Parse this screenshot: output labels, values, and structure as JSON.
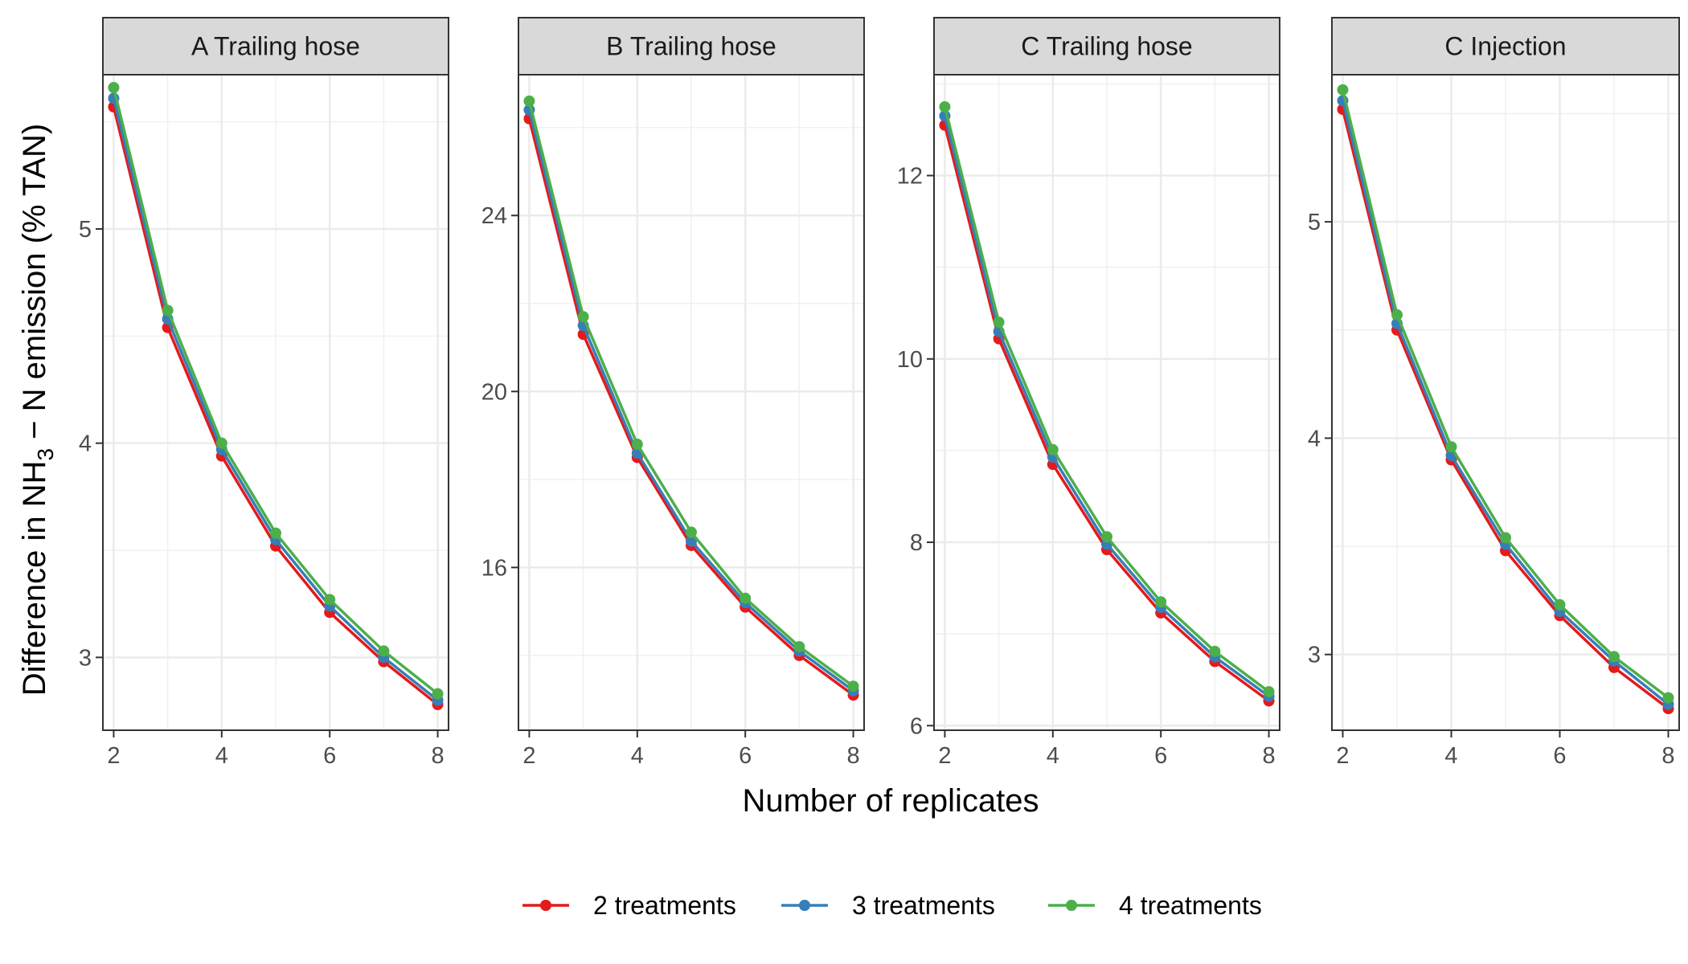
{
  "chart_data": {
    "type": "line",
    "xlabel": "Number of replicates",
    "ylabel": {
      "prefix": "Difference in  NH",
      "subscript": "3",
      "suffix": " − N  emission (% TAN)"
    },
    "x": [
      2,
      3,
      4,
      5,
      6,
      7,
      8
    ],
    "x_ticks": [
      2,
      4,
      6,
      8
    ],
    "grid": true,
    "legend_position": "bottom",
    "series_colors": {
      "2 treatments": "#E41A1C",
      "3 treatments": "#377EB8",
      "4 treatments": "#4DAF4A"
    },
    "legend": [
      "2 treatments",
      "3 treatments",
      "4 treatments"
    ],
    "panels": [
      {
        "title": "A Trailing hose",
        "ylim": [
          2.66,
          5.72
        ],
        "y_ticks": [
          3,
          4,
          5
        ],
        "series": [
          {
            "name": "2 treatments",
            "values": [
              5.57,
              4.54,
              3.94,
              3.52,
              3.21,
              2.98,
              2.78
            ]
          },
          {
            "name": "3 treatments",
            "values": [
              5.61,
              4.58,
              3.97,
              3.55,
              3.24,
              3.0,
              2.8
            ]
          },
          {
            "name": "4 treatments",
            "values": [
              5.66,
              4.62,
              4.0,
              3.58,
              3.27,
              3.03,
              2.83
            ]
          }
        ]
      },
      {
        "title": "B Trailing hose",
        "ylim": [
          12.3,
          27.2
        ],
        "y_ticks": [
          16,
          20,
          24
        ],
        "series": [
          {
            "name": "2 treatments",
            "values": [
              26.2,
              21.3,
              18.5,
              16.5,
              15.1,
              14.0,
              13.1
            ]
          },
          {
            "name": "3 treatments",
            "values": [
              26.4,
              21.5,
              18.6,
              16.6,
              15.2,
              14.1,
              13.2
            ]
          },
          {
            "name": "4 treatments",
            "values": [
              26.6,
              21.7,
              18.8,
              16.8,
              15.3,
              14.2,
              13.3
            ]
          }
        ]
      },
      {
        "title": "C Trailing hose",
        "ylim": [
          5.95,
          13.1
        ],
        "y_ticks": [
          6,
          8,
          10,
          12
        ],
        "series": [
          {
            "name": "2 treatments",
            "values": [
              12.55,
              10.22,
              8.85,
              7.92,
              7.23,
              6.7,
              6.27
            ]
          },
          {
            "name": "3 treatments",
            "values": [
              12.65,
              10.3,
              8.93,
              7.98,
              7.29,
              6.75,
              6.32
            ]
          },
          {
            "name": "4 treatments",
            "values": [
              12.75,
              10.4,
              9.01,
              8.06,
              7.35,
              6.81,
              6.37
            ]
          }
        ]
      },
      {
        "title": "C Injection",
        "ylim": [
          2.65,
          5.68
        ],
        "y_ticks": [
          3,
          4,
          5
        ],
        "series": [
          {
            "name": "2 treatments",
            "values": [
              5.52,
              4.5,
              3.9,
              3.48,
              3.18,
              2.94,
              2.75
            ]
          },
          {
            "name": "3 treatments",
            "values": [
              5.56,
              4.53,
              3.92,
              3.51,
              3.2,
              2.97,
              2.77
            ]
          },
          {
            "name": "4 treatments",
            "values": [
              5.61,
              4.57,
              3.96,
              3.54,
              3.23,
              2.99,
              2.8
            ]
          }
        ]
      }
    ]
  }
}
